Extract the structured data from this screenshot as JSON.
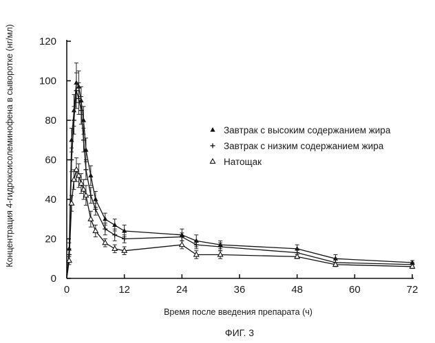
{
  "figure_caption": "ФИГ. 3",
  "chart_data": {
    "type": "line",
    "title": "",
    "xlabel": "Время после введения препарата (ч)",
    "ylabel": "Концентрация 4-гидроксисолеминофена в сыворотке (нг/мл)",
    "xlim": [
      0,
      72
    ],
    "ylim": [
      0,
      120
    ],
    "x_ticks": [
      0,
      12,
      24,
      36,
      48,
      60,
      72
    ],
    "y_ticks": [
      0,
      20,
      40,
      60,
      80,
      100,
      120
    ],
    "grid": false,
    "legend_position": "right",
    "series": [
      {
        "name": "Завтрак с высоким содержанием жира",
        "marker": "filled-triangle",
        "x": [
          0,
          0.5,
          1,
          1.5,
          2,
          2.5,
          3,
          3.5,
          4,
          5,
          6,
          8,
          10,
          12,
          24,
          27,
          32,
          48,
          56,
          72
        ],
        "y": [
          0,
          15,
          70,
          85,
          99,
          97,
          90,
          80,
          65,
          52,
          40,
          30,
          27,
          24,
          22,
          19,
          17,
          15,
          10,
          8
        ],
        "err": [
          0,
          3,
          6,
          8,
          10,
          8,
          7,
          7,
          6,
          5,
          4,
          3,
          3,
          3,
          3,
          3,
          2,
          2,
          2,
          1
        ]
      },
      {
        "name": "Завтрак с низким содержанием жира",
        "marker": "plus",
        "x": [
          0,
          0.5,
          1,
          1.5,
          2,
          2.5,
          3,
          3.5,
          4,
          5,
          6,
          8,
          10,
          12,
          24,
          27,
          32,
          48,
          56,
          72
        ],
        "y": [
          0,
          12,
          60,
          80,
          95,
          91,
          85,
          70,
          55,
          42,
          35,
          25,
          22,
          20,
          21,
          17,
          16,
          13,
          8,
          7
        ],
        "err": [
          0,
          3,
          6,
          7,
          9,
          8,
          7,
          6,
          5,
          4,
          3,
          3,
          3,
          2,
          2,
          2,
          2,
          2,
          2,
          1
        ]
      },
      {
        "name": "Натощак",
        "marker": "open-triangle",
        "x": [
          0,
          0.5,
          1,
          1.5,
          2,
          2.5,
          3,
          3.5,
          4,
          5,
          6,
          8,
          10,
          12,
          24,
          27,
          32,
          48,
          56,
          72
        ],
        "y": [
          0,
          9,
          38,
          50,
          55,
          52,
          48,
          45,
          42,
          30,
          24,
          18,
          15,
          14,
          17,
          12,
          12,
          11,
          7,
          6
        ],
        "err": [
          0,
          2,
          4,
          5,
          6,
          6,
          5,
          5,
          5,
          4,
          3,
          2,
          2,
          2,
          2,
          2,
          2,
          1,
          1,
          1
        ]
      }
    ]
  }
}
